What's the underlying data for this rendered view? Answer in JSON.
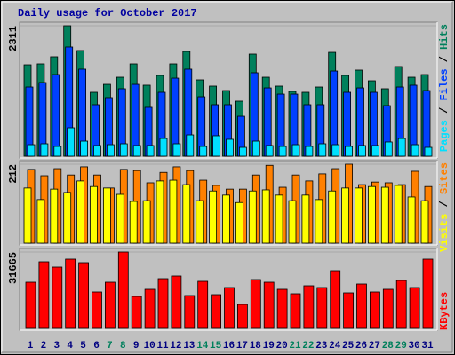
{
  "chart_data": [
    {
      "type": "bar",
      "title": "Daily usage for October 2017",
      "ylim": [
        0,
        2311
      ],
      "yticks": [
        2311
      ],
      "legend_separator": " / ",
      "series": [
        {
          "name": "Hits",
          "color": "#00805c",
          "values": [
            1619,
            1635,
            1761,
            2311,
            1871,
            1132,
            1273,
            1399,
            1635,
            1258,
            1431,
            1635,
            1855,
            1352,
            1242,
            1163,
            975,
            1808,
            1399,
            1242,
            1148,
            1132,
            1226,
            1839,
            1431,
            1525,
            1336,
            1195,
            1588,
            1399,
            1446
          ]
        },
        {
          "name": "Files",
          "color": "#0040ff",
          "values": [
            1226,
            1305,
            1446,
            1934,
            1541,
            912,
            1038,
            1195,
            1273,
            865,
            1132,
            1383,
            1541,
            1053,
            912,
            912,
            707,
            1478,
            1210,
            1100,
            1100,
            912,
            912,
            1509,
            1132,
            1210,
            1132,
            896,
            1226,
            1258,
            1163
          ]
        },
        {
          "name": "Pages",
          "color": "#00e0ff",
          "values": [
            204,
            220,
            173,
            503,
            267,
            189,
            204,
            220,
            189,
            189,
            314,
            220,
            377,
            173,
            362,
            299,
            157,
            267,
            189,
            173,
            204,
            173,
            220,
            204,
            173,
            189,
            189,
            252,
            314,
            204,
            157
          ]
        }
      ]
    },
    {
      "type": "bar",
      "ylim": [
        0,
        212
      ],
      "yticks": [
        212
      ],
      "legend_separator": " / ",
      "series": [
        {
          "name": "Sites",
          "color": "#ff8000",
          "values": [
            198,
            181,
            200,
            183,
            205,
            183,
            148,
            198,
            195,
            162,
            190,
            205,
            195,
            169,
            155,
            145,
            145,
            183,
            209,
            150,
            183,
            167,
            186,
            200,
            212,
            157,
            164,
            162,
            157,
            193,
            152
          ]
        },
        {
          "name": "Visits",
          "color": "#ffff00",
          "values": [
            148,
            117,
            145,
            136,
            167,
            152,
            148,
            131,
            112,
            114,
            167,
            169,
            157,
            114,
            140,
            129,
            109,
            140,
            143,
            129,
            114,
            129,
            117,
            140,
            148,
            148,
            152,
            150,
            155,
            124,
            114
          ]
        }
      ]
    },
    {
      "type": "bar",
      "ylim": [
        0,
        31665
      ],
      "yticks": [
        31665
      ],
      "categories": [
        "1",
        "2",
        "3",
        "4",
        "5",
        "6",
        "7",
        "8",
        "9",
        "10",
        "11",
        "12",
        "13",
        "14",
        "15",
        "16",
        "17",
        "18",
        "19",
        "20",
        "21",
        "22",
        "23",
        "24",
        "25",
        "26",
        "27",
        "28",
        "29",
        "30",
        "31"
      ],
      "category_color": "#000080",
      "highlight_color": "#00805c",
      "highlight_indices": [
        6,
        7,
        13,
        14,
        20,
        21,
        27,
        28
      ],
      "series": [
        {
          "name": "KBytes",
          "color": "#ff0000",
          "values": [
            19146,
            27616,
            25406,
            28720,
            27247,
            15096,
            19146,
            31665,
            13255,
            16201,
            20619,
            21724,
            13623,
            19515,
            13992,
            16937,
            9941,
            20251,
            19146,
            16201,
            14360,
            17674,
            16937,
            23933,
            14728,
            18410,
            15096,
            16201,
            19883,
            16937,
            28720
          ]
        }
      ]
    }
  ]
}
